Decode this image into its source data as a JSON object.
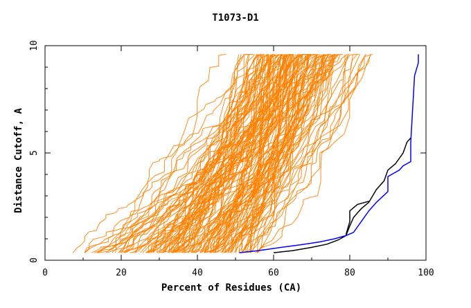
{
  "chart_data": {
    "type": "line",
    "title": "T1073-D1",
    "xlabel": "Percent of Residues (CA)",
    "ylabel": "Distance Cutoff, A",
    "xlim": [
      0,
      100
    ],
    "ylim": [
      0,
      10
    ],
    "x_ticks": [
      "0",
      "20",
      "40",
      "60",
      "80",
      "100"
    ],
    "y_ticks": [
      "0",
      "5",
      "10"
    ],
    "grid": false,
    "legend": "none",
    "colors": {
      "models": "#ff8000",
      "black_model": "#000000",
      "blue_model": "#0000ff"
    },
    "models_count": 150,
    "models_seed": 1073,
    "series": [
      {
        "color": "#000000",
        "points": [
          [
            60,
            0.35
          ],
          [
            65,
            0.45
          ],
          [
            70,
            0.6
          ],
          [
            74,
            0.75
          ],
          [
            77,
            0.95
          ],
          [
            79,
            1.15
          ],
          [
            80,
            1.6
          ],
          [
            81,
            2.0
          ],
          [
            83,
            2.4
          ],
          [
            85,
            2.7
          ],
          [
            86,
            3.0
          ],
          [
            87,
            3.3
          ],
          [
            89,
            3.7
          ],
          [
            90,
            4.2
          ],
          [
            92,
            4.5
          ],
          [
            94,
            5.0
          ],
          [
            95,
            5.5
          ],
          [
            96,
            5.7
          ]
        ]
      },
      {
        "color": "#000000",
        "points": [
          [
            79,
            1.2
          ],
          [
            80,
            1.8
          ],
          [
            80,
            2.3
          ],
          [
            82,
            2.6
          ],
          [
            85,
            2.75
          ]
        ]
      },
      {
        "color": "#0000ff",
        "points": [
          [
            51,
            0.35
          ],
          [
            56,
            0.45
          ],
          [
            62,
            0.6
          ],
          [
            67,
            0.72
          ],
          [
            72,
            0.85
          ],
          [
            76,
            1.0
          ],
          [
            79,
            1.15
          ],
          [
            81,
            1.3
          ],
          [
            83,
            1.8
          ],
          [
            85,
            2.3
          ],
          [
            87,
            2.7
          ],
          [
            90,
            3.2
          ],
          [
            90,
            3.9
          ],
          [
            93,
            4.2
          ],
          [
            94,
            4.4
          ],
          [
            96,
            4.6
          ],
          [
            96,
            5.5
          ],
          [
            97,
            8.6
          ],
          [
            98,
            9.2
          ],
          [
            98,
            9.6
          ]
        ]
      }
    ]
  }
}
